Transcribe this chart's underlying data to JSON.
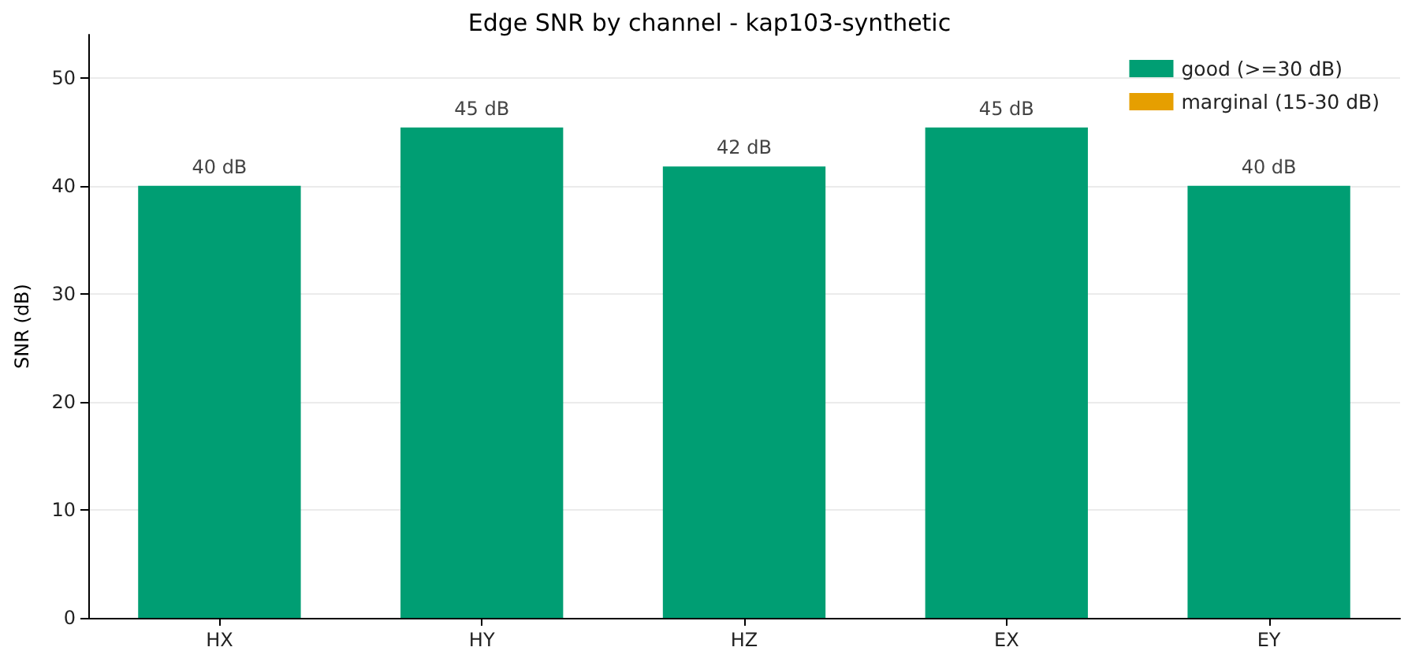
{
  "chart_data": {
    "type": "bar",
    "title": "Edge SNR by channel - kap103-synthetic",
    "ylabel": "SNR (dB)",
    "categories": [
      "HX",
      "HY",
      "HZ",
      "EX",
      "EY"
    ],
    "series": [
      {
        "name": "good (>=30 dB)",
        "color": "#009e73",
        "values": [
          40,
          45.4,
          41.8,
          45.4,
          40
        ],
        "value_labels": [
          "40 dB",
          "45 dB",
          "42 dB",
          "45 dB",
          "40 dB"
        ]
      },
      {
        "name": "marginal (15-30 dB)",
        "color": "#e69f00",
        "values": [
          null,
          null,
          null,
          null,
          null
        ]
      }
    ],
    "ylim": [
      0,
      54
    ],
    "yticks": [
      0,
      10,
      20,
      30,
      40,
      50
    ],
    "grid": "y",
    "legend": "top right"
  }
}
